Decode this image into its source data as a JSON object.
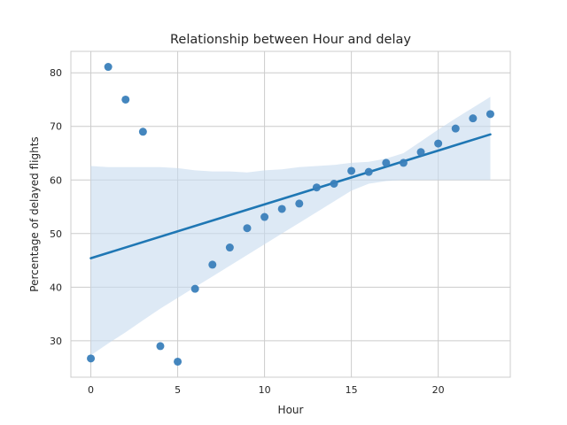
{
  "chart_data": {
    "type": "scatter",
    "title": "Relationship between Hour and delay",
    "xlabel": "Hour",
    "ylabel": "Percentage of delayed flights",
    "xlim": [
      -1.15,
      24.15
    ],
    "ylim": [
      23.2,
      84.0
    ],
    "xticks": [
      0,
      5,
      10,
      15,
      20
    ],
    "yticks": [
      30,
      40,
      50,
      60,
      70,
      80
    ],
    "grid": true,
    "colors": {
      "points": "#3a7fba",
      "regression": "#1f77b4",
      "ci_band": "#c6dbef"
    },
    "points": {
      "x": [
        0,
        1,
        2,
        3,
        4,
        5,
        6,
        7,
        8,
        9,
        10,
        11,
        12,
        13,
        14,
        15,
        16,
        17,
        18,
        19,
        20,
        21,
        22,
        23
      ],
      "y": [
        26.7,
        81.1,
        75.0,
        69.0,
        29.0,
        26.1,
        39.7,
        44.2,
        47.4,
        51.0,
        53.1,
        54.6,
        55.6,
        58.6,
        59.3,
        61.7,
        61.5,
        63.2,
        63.2,
        65.2,
        66.8,
        69.6,
        71.5,
        72.3
      ]
    },
    "regression": {
      "x": [
        0,
        23
      ],
      "y": [
        45.4,
        68.5
      ]
    },
    "ci_band": {
      "x": [
        0,
        1,
        2,
        3,
        4,
        5,
        6,
        7,
        8,
        9,
        10,
        11,
        12,
        13,
        14,
        15,
        16,
        17,
        18,
        19,
        20,
        21,
        22,
        23
      ],
      "upper": [
        62.6,
        62.4,
        62.4,
        62.4,
        62.4,
        62.2,
        61.8,
        61.6,
        61.6,
        61.4,
        61.8,
        62.0,
        62.4,
        62.6,
        62.8,
        63.2,
        63.4,
        64.0,
        65.0,
        67.2,
        69.4,
        71.5,
        73.5,
        75.5
      ],
      "lower": [
        27.3,
        29.5,
        31.6,
        33.8,
        36.0,
        38.0,
        40.0,
        42.0,
        44.0,
        46.0,
        48.0,
        50.0,
        52.0,
        54.0,
        56.0,
        58.0,
        59.3,
        59.8,
        60.0,
        60.0,
        60.0,
        60.0,
        60.0,
        60.0
      ]
    }
  }
}
